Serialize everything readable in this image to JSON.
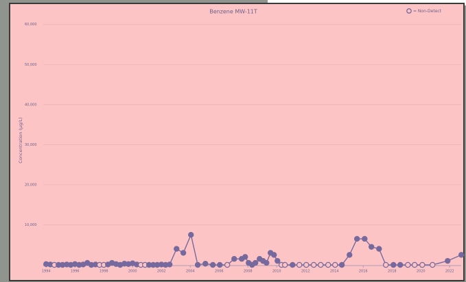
{
  "chart_data": {
    "type": "line",
    "title": "Benzene MW-11T",
    "legend_label": "= Non-Detect",
    "y_label": "Concentration (µg/L)",
    "xlim": [
      1993.8,
      2022.8
    ],
    "xticks": [
      1994,
      1996,
      1998,
      2000,
      2002,
      2004,
      2006,
      2008,
      2010,
      2012,
      2014,
      2016,
      2018,
      2020,
      2022
    ],
    "ylim": [
      0,
      62000
    ],
    "yticks": [
      {
        "value": 10000,
        "label": "10,000"
      },
      {
        "value": 20000,
        "label": "20,000"
      },
      {
        "value": 30000,
        "label": "30,000"
      },
      {
        "value": 40000,
        "label": "40,000"
      },
      {
        "value": 50000,
        "label": "50,000"
      },
      {
        "value": 60000,
        "label": "60,000"
      }
    ],
    "grid": true,
    "series": [
      {
        "color": "#76699e",
        "x": [
          1994.0,
          1994.29,
          1994.57,
          1994.86,
          1995.14,
          1995.43,
          1995.71,
          1996.0,
          1996.29,
          1996.57,
          1996.86,
          1997.14,
          1997.43,
          1997.71,
          1998.0,
          1998.29,
          1998.57,
          1998.86,
          1999.14,
          1999.43,
          1999.71,
          2000.0,
          2000.29,
          2000.57,
          2000.86,
          2001.14,
          2001.43,
          2001.71,
          2002.0,
          2002.29,
          2002.57,
          2003.05,
          2003.52,
          2004.05,
          2004.52,
          2005.05,
          2005.57,
          2006.05,
          2006.57,
          2007.05,
          2007.57,
          2007.81,
          2008.05,
          2008.29,
          2008.52,
          2008.81,
          2009.05,
          2009.29,
          2009.57,
          2009.81,
          2010.05,
          2010.33,
          2010.57,
          2011.1,
          2011.57,
          2012.05,
          2012.57,
          2013.05,
          2013.57,
          2014.05,
          2014.52,
          2015.05,
          2015.57,
          2016.1,
          2016.57,
          2017.1,
          2017.57,
          2018.1,
          2018.57,
          2019.1,
          2019.57,
          2020.1,
          2020.81,
          2021.86,
          2022.81
        ],
        "values": [
          200,
          100,
          0,
          0,
          0,
          100,
          0,
          200,
          0,
          100,
          500,
          0,
          100,
          0,
          0,
          100,
          500,
          200,
          0,
          300,
          200,
          400,
          100,
          0,
          0,
          0,
          0,
          0,
          100,
          0,
          100,
          4000,
          3000,
          7500,
          0,
          300,
          0,
          0,
          0,
          1500,
          1500,
          2000,
          500,
          0,
          500,
          1500,
          1000,
          500,
          3000,
          2500,
          1000,
          0,
          0,
          0,
          0,
          0,
          0,
          0,
          0,
          0,
          0,
          2500,
          6500,
          6500,
          4500,
          4000,
          0,
          0,
          0,
          0,
          0,
          0,
          0,
          1000,
          2500
        ],
        "non_detect": [
          false,
          false,
          true,
          false,
          false,
          false,
          false,
          false,
          false,
          false,
          false,
          false,
          false,
          true,
          true,
          false,
          false,
          false,
          false,
          false,
          false,
          false,
          false,
          true,
          true,
          false,
          false,
          false,
          false,
          false,
          false,
          false,
          false,
          false,
          false,
          false,
          false,
          false,
          true,
          false,
          false,
          false,
          false,
          false,
          false,
          false,
          false,
          false,
          false,
          false,
          false,
          true,
          true,
          false,
          true,
          true,
          true,
          true,
          true,
          true,
          false,
          false,
          false,
          false,
          false,
          false,
          true,
          false,
          false,
          true,
          true,
          true,
          true,
          false,
          false
        ]
      }
    ]
  }
}
